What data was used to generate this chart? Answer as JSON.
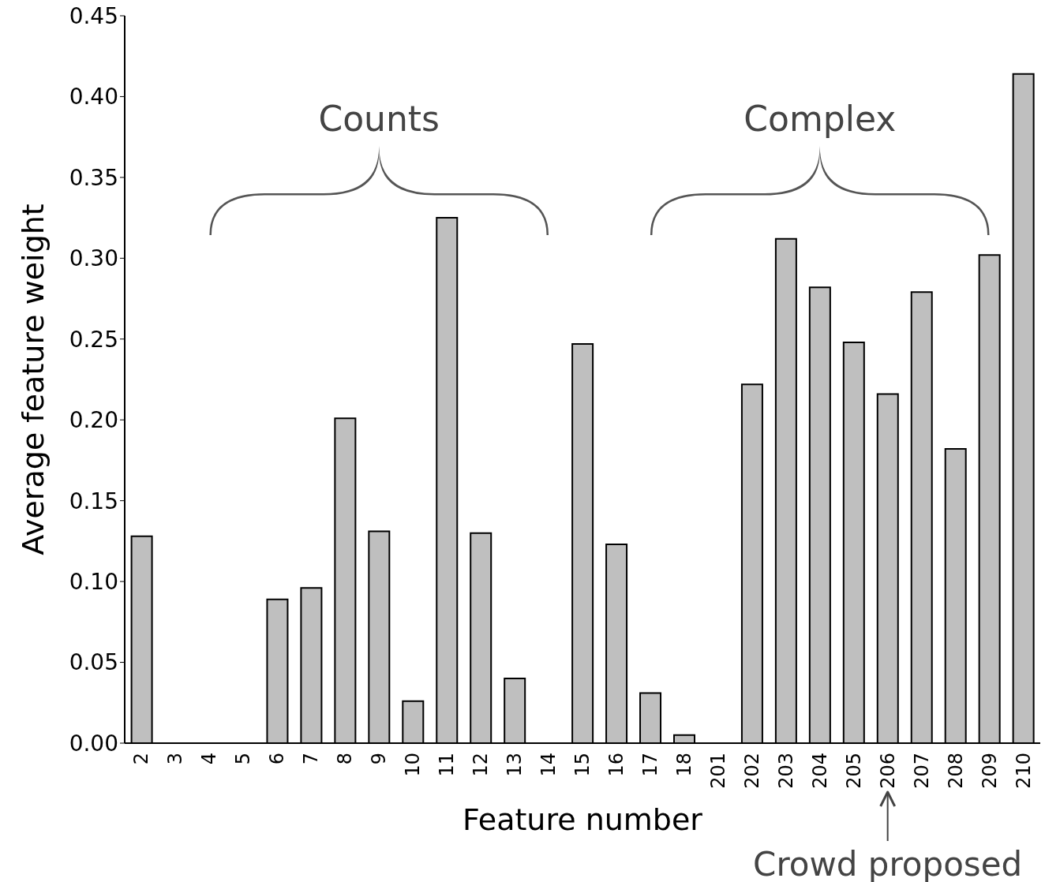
{
  "chart_data": {
    "type": "bar",
    "xlabel": "Feature number",
    "ylabel": "Average feature weight",
    "categories": [
      "2",
      "3",
      "4",
      "5",
      "6",
      "7",
      "8",
      "9",
      "10",
      "11",
      "12",
      "13",
      "14",
      "15",
      "16",
      "17",
      "18",
      "201",
      "202",
      "203",
      "204",
      "205",
      "206",
      "207",
      "208",
      "209",
      "210"
    ],
    "values": [
      0.128,
      0,
      0,
      0,
      0.089,
      0.096,
      0.201,
      0.131,
      0.026,
      0.325,
      0.13,
      0.04,
      0,
      0.247,
      0.123,
      0.031,
      0.005,
      0,
      0.222,
      0.312,
      0.282,
      0.248,
      0.216,
      0.279,
      0.182,
      0.302,
      0.414
    ],
    "color": "#bfbfbf",
    "ylim": [
      0,
      0.45
    ],
    "yticks": [
      {
        "value": 0,
        "label": "0.00"
      },
      {
        "value": 0.05,
        "label": "0.05"
      },
      {
        "value": 0.1,
        "label": "0.10"
      },
      {
        "value": 0.15,
        "label": "0.15"
      },
      {
        "value": 0.2,
        "label": "0.20"
      },
      {
        "value": 0.25,
        "label": "0.25"
      },
      {
        "value": 0.3,
        "label": "0.30"
      },
      {
        "value": 0.35,
        "label": "0.35"
      },
      {
        "value": 0.4,
        "label": "0.40"
      },
      {
        "value": 0.45,
        "label": "0.45"
      }
    ],
    "grid": false,
    "annotations": [
      "Counts",
      "Complex",
      {
        "text": "Crowd proposed",
        "x": "206"
      }
    ]
  }
}
